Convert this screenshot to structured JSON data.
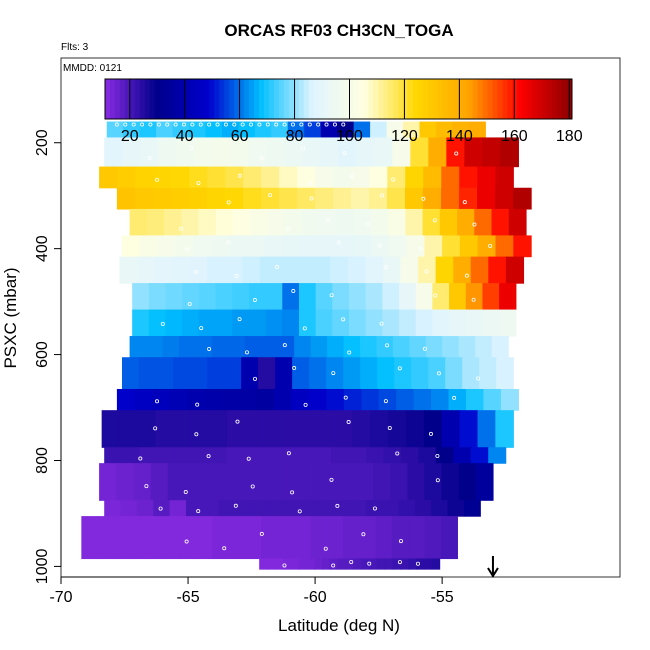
{
  "chart_data": {
    "type": "heatmap",
    "title": "ORCAS RF03 CH3CN_TOGA",
    "flights_note": "Flts: 3",
    "date_note": "MMDD: 0121",
    "xlabel": "Latitude (deg N)",
    "ylabel": "PSXC (mbar)",
    "xlim": [
      -70,
      -48
    ],
    "ylim": [
      1020,
      40
    ],
    "y_inverted": true,
    "x_ticks": [
      "-70",
      "-65",
      "-60",
      "-55"
    ],
    "x_tick_values": [
      -70,
      -65,
      -60,
      -55
    ],
    "y_ticks": [
      "200",
      "400",
      "600",
      "800",
      "1000"
    ],
    "y_tick_values": [
      200,
      400,
      600,
      800,
      1000
    ],
    "colorbar": {
      "min": 11,
      "max": 181,
      "ticks": [
        "20",
        "40",
        "60",
        "80",
        "100",
        "120",
        "140",
        "160",
        "180"
      ],
      "tick_values": [
        20,
        40,
        60,
        80,
        100,
        120,
        140,
        160,
        180
      ],
      "colors": [
        "#8a2be2",
        "#00008b",
        "#0000cd",
        "#00bfff",
        "#e0f4ff",
        "#ffffe0",
        "#ffd700",
        "#ffa500",
        "#ff0000",
        "#8b0000"
      ]
    },
    "marker": {
      "type": "arrow",
      "latitude": -53,
      "direction": "down"
    },
    "levels": [
      {
        "p": 175,
        "x0": -68.2,
        "x1": -53.3,
        "v": [
          75,
          72,
          70,
          74,
          72,
          70,
          68,
          66,
          68,
          70,
          72,
          60,
          55,
          40,
          30,
          60,
          85,
          100,
          110,
          130,
          135,
          138,
          140
        ]
      },
      {
        "p": 225,
        "x0": -68.3,
        "x1": -52.0,
        "v": [
          88,
          90,
          92,
          95,
          97,
          98,
          99,
          98,
          96,
          95,
          94,
          92,
          90,
          88,
          90,
          92,
          100,
          120,
          140,
          160,
          170,
          172,
          175
        ]
      },
      {
        "p": 265,
        "x0": -68.5,
        "x1": -52.2,
        "v": [
          130,
          128,
          126,
          125,
          124,
          122,
          120,
          118,
          115,
          112,
          108,
          105,
          100,
          98,
          100,
          105,
          115,
          125,
          135,
          150,
          160,
          165,
          170
        ]
      },
      {
        "p": 305,
        "x0": -67.8,
        "x1": -51.5,
        "v": [
          132,
          130,
          129,
          128,
          127,
          125,
          124,
          122,
          120,
          118,
          116,
          114,
          112,
          110,
          112,
          118,
          130,
          140,
          150,
          158,
          165,
          170,
          175
        ]
      },
      {
        "p": 350,
        "x0": -67.3,
        "x1": -51.7,
        "v": [
          115,
          114,
          112,
          110,
          108,
          106,
          104,
          102,
          100,
          98,
          97,
          96,
          95,
          96,
          98,
          102,
          110,
          120,
          130,
          140,
          150,
          160,
          170
        ]
      },
      {
        "p": 395,
        "x0": -67.6,
        "x1": -51.5,
        "v": [
          105,
          102,
          100,
          98,
          96,
          95,
          94,
          93,
          92,
          91,
          90,
          90,
          90,
          91,
          93,
          96,
          100,
          110,
          120,
          130,
          140,
          150,
          160
        ]
      },
      {
        "p": 440,
        "x0": -67.7,
        "x1": -51.8,
        "v": [
          92,
          90,
          89,
          88,
          87,
          86,
          86,
          85,
          84,
          84,
          84,
          84,
          85,
          86,
          88,
          92,
          100,
          110,
          125,
          140,
          150,
          160,
          170
        ]
      },
      {
        "p": 490,
        "x0": -67.2,
        "x1": -52.1,
        "v": [
          80,
          78,
          77,
          76,
          75,
          74,
          73,
          72,
          72,
          60,
          70,
          75,
          78,
          80,
          82,
          85,
          90,
          100,
          115,
          130,
          145,
          155,
          165
        ]
      },
      {
        "p": 540,
        "x0": -67.2,
        "x1": -52.1,
        "v": [
          70,
          68,
          67,
          66,
          65,
          65,
          64,
          64,
          63,
          62,
          70,
          74,
          76,
          78,
          80,
          82,
          84,
          86,
          88,
          90,
          92,
          94,
          95
        ]
      },
      {
        "p": 585,
        "x0": -67.3,
        "x1": -52.4,
        "v": [
          62,
          62,
          61,
          60,
          60,
          59,
          59,
          58,
          58,
          58,
          62,
          64,
          66,
          68,
          70,
          72,
          74,
          76,
          78,
          80,
          82,
          84,
          86
        ]
      },
      {
        "p": 635,
        "x0": -67.6,
        "x1": -52.2,
        "v": [
          58,
          57,
          57,
          56,
          56,
          55,
          55,
          40,
          25,
          40,
          58,
          60,
          62,
          64,
          66,
          68,
          70,
          72,
          74,
          78,
          82,
          84,
          86
        ]
      },
      {
        "p": 685,
        "x0": -67.8,
        "x1": -52.0,
        "v": [
          48,
          46,
          44,
          42,
          40,
          39,
          38,
          37,
          36,
          40,
          45,
          48,
          50,
          52,
          54,
          56,
          58,
          60,
          62,
          66,
          70,
          75,
          80
        ]
      },
      {
        "p": 740,
        "x0": -68.4,
        "x1": -52.2,
        "v": [
          26,
          26,
          26,
          25,
          25,
          25,
          25,
          24,
          24,
          24,
          24,
          24,
          24,
          24,
          25,
          26,
          27,
          28,
          30,
          40,
          50,
          60,
          70
        ]
      },
      {
        "p": 790,
        "x0": -68.3,
        "x1": -52.5,
        "v": [
          22,
          22,
          21,
          21,
          21,
          21,
          21,
          20,
          20,
          20,
          20,
          20,
          20,
          21,
          21,
          22,
          23,
          24,
          26,
          30,
          40,
          50,
          62
        ]
      },
      {
        "p": 840,
        "x0": -68.5,
        "x1": -53.0,
        "v": [
          14,
          15,
          16,
          18,
          20,
          20,
          20,
          20,
          20,
          20,
          20,
          20,
          20,
          20,
          20,
          20,
          21,
          22,
          24,
          26,
          28,
          30,
          35
        ]
      },
      {
        "p": 890,
        "x0": -68.3,
        "x1": -53.5,
        "v": [
          13,
          14,
          15,
          18,
          14,
          20,
          20,
          21,
          21,
          21,
          21,
          21,
          21,
          21,
          21,
          21,
          22,
          22,
          23,
          24,
          26,
          28,
          32
        ]
      },
      {
        "p": 945,
        "x0": -69.2,
        "x1": -54.4,
        "v": [
          12,
          12,
          12,
          12,
          12,
          12,
          12,
          12,
          13,
          13,
          13,
          14,
          14,
          14,
          15,
          15,
          16,
          16,
          17,
          18,
          18,
          19,
          20
        ]
      },
      {
        "p": 995,
        "x0": -62.2,
        "x1": -55.1,
        "v": [
          12,
          12,
          12,
          13,
          13,
          14,
          14,
          15,
          16,
          17,
          18,
          18,
          19,
          20,
          20,
          21,
          21,
          22,
          22,
          23,
          24,
          24,
          25
        ]
      }
    ],
    "level_edges": [
      160,
      190,
      245,
      285,
      325,
      375,
      415,
      465,
      515,
      565,
      605,
      665,
      705,
      775,
      805,
      875,
      905,
      985,
      1005
    ]
  }
}
